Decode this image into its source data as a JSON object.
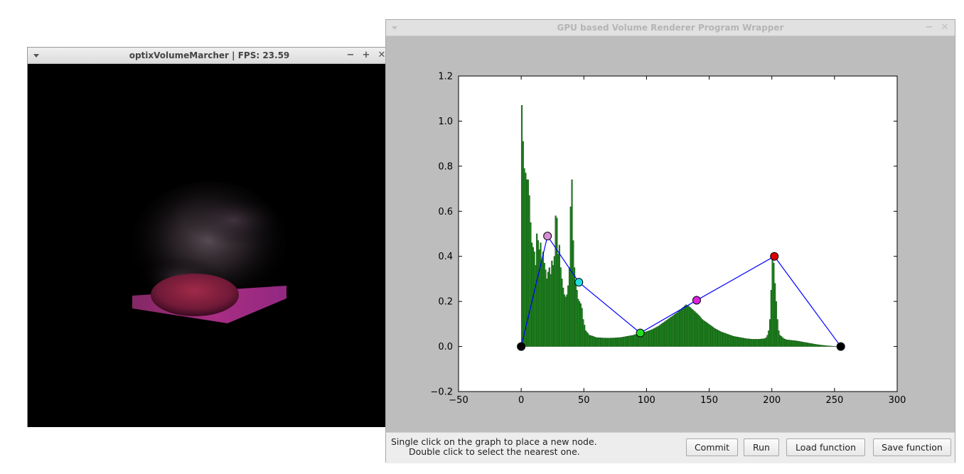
{
  "left_window": {
    "title": "optixVolumeMarcher | FPS:  23.59",
    "controls": {
      "minimize": "−",
      "maximize": "+",
      "close": "✕"
    }
  },
  "right_window": {
    "title": "GPU based Volume Renderer Program Wrapper",
    "controls": {
      "minimize": "−",
      "close": "✕"
    },
    "hint_line1": "Single click on the graph to place a new node.",
    "hint_line2": "Double click to select the nearest one.",
    "buttons": {
      "commit": "Commit",
      "run": "Run",
      "load": "Load function",
      "save": "Save function"
    }
  },
  "chart_data": {
    "type": "bar",
    "title": "",
    "xlabel": "",
    "ylabel": "",
    "xlim": [
      -50,
      300
    ],
    "ylim": [
      -0.2,
      1.2
    ],
    "xticks": [
      -50,
      0,
      50,
      100,
      150,
      200,
      250,
      300
    ],
    "xtick_labels": [
      "−50",
      "0",
      "50",
      "100",
      "150",
      "200",
      "250",
      "300"
    ],
    "yticks": [
      -0.2,
      0.0,
      0.2,
      0.4,
      0.6,
      0.8,
      1.0,
      1.2
    ],
    "ytick_labels": [
      "−0.2",
      "0.0",
      "0.2",
      "0.4",
      "0.6",
      "0.8",
      "1.0",
      "1.2"
    ],
    "grid": false,
    "legend": "none",
    "histogram_color": "#228b22",
    "line_color": "#0000ff",
    "histogram": {
      "x": [
        1,
        2,
        3,
        4,
        5,
        6,
        7,
        8,
        9,
        10,
        11,
        12,
        13,
        14,
        15,
        16,
        17,
        18,
        19,
        20,
        21,
        22,
        23,
        24,
        25,
        26,
        27,
        28,
        29,
        30,
        31,
        32,
        33,
        34,
        35,
        36,
        37,
        38,
        39,
        40,
        41,
        42,
        43,
        44,
        45,
        46,
        47,
        48,
        49,
        50,
        52,
        55,
        58,
        60,
        65,
        70,
        75,
        80,
        85,
        90,
        95,
        100,
        105,
        110,
        115,
        120,
        125,
        128,
        130,
        132,
        134,
        135,
        136,
        137,
        138,
        140,
        142,
        145,
        150,
        155,
        160,
        165,
        170,
        175,
        180,
        185,
        190,
        195,
        196,
        197,
        198,
        199,
        200,
        201,
        202,
        203,
        204,
        205,
        206,
        207,
        208,
        209,
        210,
        212,
        215,
        220,
        225,
        230,
        235,
        240,
        245,
        250,
        255
      ],
      "values": [
        1.07,
        0.91,
        0.79,
        0.77,
        0.74,
        0.74,
        0.67,
        0.55,
        0.46,
        0.44,
        0.42,
        0.36,
        0.5,
        0.47,
        0.43,
        0.46,
        0.38,
        0.42,
        0.37,
        0.34,
        0.3,
        0.33,
        0.35,
        0.32,
        0.38,
        0.36,
        0.4,
        0.58,
        0.57,
        0.41,
        0.45,
        0.35,
        0.3,
        0.26,
        0.23,
        0.22,
        0.23,
        0.27,
        0.35,
        0.62,
        0.74,
        0.47,
        0.35,
        0.28,
        0.25,
        0.21,
        0.2,
        0.19,
        0.17,
        0.12,
        0.07,
        0.05,
        0.045,
        0.04,
        0.038,
        0.037,
        0.038,
        0.04,
        0.045,
        0.05,
        0.06,
        0.065,
        0.075,
        0.09,
        0.11,
        0.13,
        0.15,
        0.165,
        0.175,
        0.185,
        0.18,
        0.175,
        0.17,
        0.165,
        0.16,
        0.15,
        0.14,
        0.12,
        0.1,
        0.08,
        0.065,
        0.055,
        0.045,
        0.04,
        0.035,
        0.032,
        0.032,
        0.035,
        0.04,
        0.05,
        0.07,
        0.12,
        0.25,
        0.4,
        0.37,
        0.28,
        0.2,
        0.12,
        0.07,
        0.05,
        0.045,
        0.04,
        0.035,
        0.03,
        0.028,
        0.025,
        0.02,
        0.015,
        0.01,
        0.006,
        0.003,
        0.001,
        0
      ]
    },
    "transfer_function": {
      "x": [
        0,
        21,
        46,
        95,
        140,
        202,
        255
      ],
      "y": [
        0.0,
        0.49,
        0.285,
        0.06,
        0.205,
        0.4,
        0.0
      ],
      "node_colors": [
        "#000000",
        "#d58ed5",
        "#22dddd",
        "#22dd22",
        "#dd22dd",
        "#dd0000",
        "#000000"
      ]
    }
  }
}
